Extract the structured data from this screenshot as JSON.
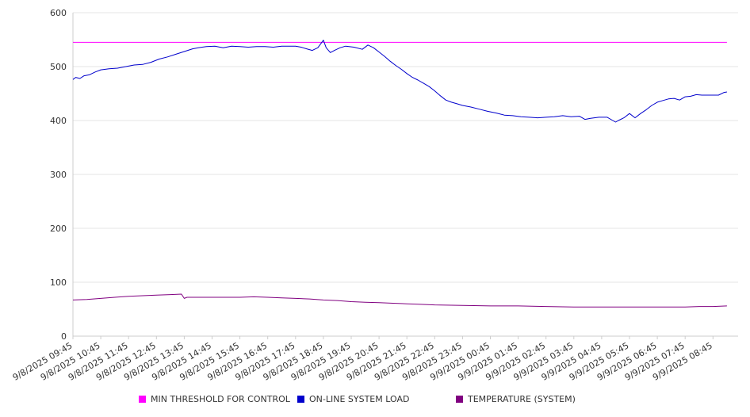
{
  "chart_data": {
    "type": "line",
    "title": "",
    "xlabel": "",
    "ylabel": "",
    "ylim": [
      0,
      600
    ],
    "yticks": [
      0,
      100,
      200,
      300,
      400,
      500,
      600
    ],
    "xticks": [
      "9/8/2025 09:45",
      "9/8/2025 10:45",
      "9/8/2025 11:45",
      "9/8/2025 12:45",
      "9/8/2025 13:45",
      "9/8/2025 14:45",
      "9/8/2025 15:45",
      "9/8/2025 16:45",
      "9/8/2025 17:45",
      "9/8/2025 18:45",
      "9/8/2025 19:45",
      "9/8/2025 20:45",
      "9/8/2025 21:45",
      "9/8/2025 22:45",
      "9/8/2025 23:45",
      "9/9/2025 00:45",
      "9/9/2025 01:45",
      "9/9/2025 02:45",
      "9/9/2025 03:45",
      "9/9/2025 04:45",
      "9/9/2025 05:45",
      "9/9/2025 06:45",
      "9/9/2025 07:45",
      "9/9/2025 08:45"
    ],
    "grid": true,
    "legend_position": "bottom",
    "series": [
      {
        "name": "MIN THRESHOLD FOR CONTROL",
        "color": "#ff00ff",
        "points": [
          [
            0,
            545
          ],
          [
            23.5,
            545
          ]
        ]
      },
      {
        "name": "ON-LINE SYSTEM LOAD",
        "color": "#0000cc",
        "points": [
          [
            0,
            476
          ],
          [
            0.1,
            480
          ],
          [
            0.25,
            478
          ],
          [
            0.4,
            483
          ],
          [
            0.6,
            485
          ],
          [
            0.8,
            490
          ],
          [
            1.0,
            494
          ],
          [
            1.3,
            496
          ],
          [
            1.6,
            497
          ],
          [
            1.9,
            500
          ],
          [
            2.2,
            503
          ],
          [
            2.5,
            504
          ],
          [
            2.8,
            508
          ],
          [
            3.1,
            514
          ],
          [
            3.4,
            518
          ],
          [
            3.7,
            523
          ],
          [
            4.0,
            528
          ],
          [
            4.3,
            533
          ],
          [
            4.5,
            535
          ],
          [
            4.8,
            537
          ],
          [
            5.1,
            538
          ],
          [
            5.4,
            535
          ],
          [
            5.7,
            538
          ],
          [
            6.0,
            537
          ],
          [
            6.3,
            536
          ],
          [
            6.6,
            537
          ],
          [
            6.9,
            537
          ],
          [
            7.2,
            536
          ],
          [
            7.5,
            538
          ],
          [
            7.8,
            538
          ],
          [
            8.0,
            538
          ],
          [
            8.2,
            536
          ],
          [
            8.4,
            533
          ],
          [
            8.6,
            530
          ],
          [
            8.8,
            535
          ],
          [
            9.0,
            549
          ],
          [
            9.1,
            535
          ],
          [
            9.25,
            526
          ],
          [
            9.4,
            530
          ],
          [
            9.6,
            535
          ],
          [
            9.8,
            538
          ],
          [
            10.1,
            536
          ],
          [
            10.4,
            532
          ],
          [
            10.6,
            540
          ],
          [
            10.8,
            535
          ],
          [
            11.0,
            527
          ],
          [
            11.2,
            519
          ],
          [
            11.4,
            510
          ],
          [
            11.6,
            502
          ],
          [
            11.8,
            495
          ],
          [
            12.0,
            487
          ],
          [
            12.2,
            480
          ],
          [
            12.4,
            475
          ],
          [
            12.6,
            469
          ],
          [
            12.8,
            463
          ],
          [
            13.0,
            455
          ],
          [
            13.2,
            446
          ],
          [
            13.4,
            438
          ],
          [
            13.6,
            434
          ],
          [
            13.8,
            431
          ],
          [
            14.0,
            428
          ],
          [
            14.3,
            425
          ],
          [
            14.6,
            421
          ],
          [
            14.9,
            417
          ],
          [
            15.2,
            414
          ],
          [
            15.5,
            410
          ],
          [
            15.8,
            409
          ],
          [
            16.1,
            407
          ],
          [
            16.4,
            406
          ],
          [
            16.7,
            405
          ],
          [
            17.0,
            406
          ],
          [
            17.3,
            407
          ],
          [
            17.6,
            409
          ],
          [
            17.9,
            407
          ],
          [
            18.2,
            408
          ],
          [
            18.4,
            402
          ],
          [
            18.6,
            404
          ],
          [
            18.9,
            406
          ],
          [
            19.2,
            406
          ],
          [
            19.4,
            400
          ],
          [
            19.5,
            397
          ],
          [
            19.6,
            400
          ],
          [
            19.8,
            405
          ],
          [
            20.0,
            413
          ],
          [
            20.2,
            405
          ],
          [
            20.4,
            413
          ],
          [
            20.6,
            420
          ],
          [
            20.8,
            428
          ],
          [
            21.0,
            434
          ],
          [
            21.2,
            437
          ],
          [
            21.4,
            440
          ],
          [
            21.6,
            441
          ],
          [
            21.8,
            438
          ],
          [
            22.0,
            444
          ],
          [
            22.2,
            445
          ],
          [
            22.4,
            448
          ],
          [
            22.6,
            447
          ],
          [
            22.8,
            447
          ],
          [
            23.0,
            447
          ],
          [
            23.2,
            447
          ],
          [
            23.4,
            452
          ],
          [
            23.5,
            453
          ]
        ]
      },
      {
        "name": "TEMPERATURE (SYSTEM)",
        "color": "#800080",
        "points": [
          [
            0,
            67
          ],
          [
            0.5,
            68
          ],
          [
            1.0,
            70
          ],
          [
            1.5,
            72
          ],
          [
            2.0,
            74
          ],
          [
            2.5,
            75
          ],
          [
            3.0,
            76
          ],
          [
            3.5,
            77
          ],
          [
            3.9,
            78
          ],
          [
            4.0,
            70
          ],
          [
            4.1,
            72
          ],
          [
            5.0,
            72
          ],
          [
            6.0,
            72
          ],
          [
            6.5,
            73
          ],
          [
            7.0,
            72
          ],
          [
            7.5,
            71
          ],
          [
            8.0,
            70
          ],
          [
            8.5,
            69
          ],
          [
            9.0,
            67
          ],
          [
            9.5,
            66
          ],
          [
            10.0,
            64
          ],
          [
            10.5,
            63
          ],
          [
            11.0,
            62
          ],
          [
            11.5,
            61
          ],
          [
            12.0,
            60
          ],
          [
            12.5,
            59
          ],
          [
            13.0,
            58
          ],
          [
            14.0,
            57
          ],
          [
            15.0,
            56
          ],
          [
            16.0,
            56
          ],
          [
            17.0,
            55
          ],
          [
            18.0,
            54
          ],
          [
            19.0,
            54
          ],
          [
            20.0,
            54
          ],
          [
            21.0,
            54
          ],
          [
            22.0,
            54
          ],
          [
            22.5,
            55
          ],
          [
            23.0,
            55
          ],
          [
            23.5,
            56
          ]
        ]
      }
    ]
  }
}
